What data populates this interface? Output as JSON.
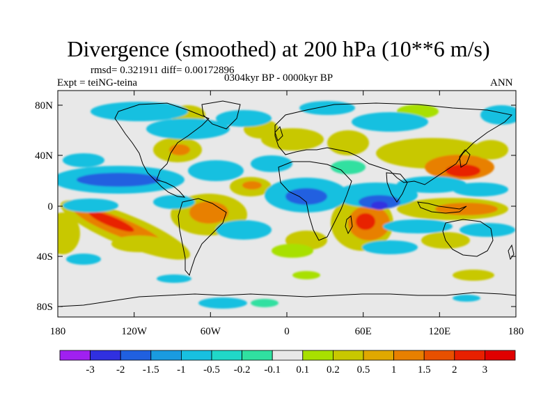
{
  "title": "Divergence (smoothed) at 200 hPa (10**6 m/s)",
  "stats": "rmsd= 0.321911  diff= 0.00172896",
  "experiment": "Expt = teiNG-teina",
  "period": "0304kyr BP - 0000kyr BP",
  "season": "ANN",
  "lat_labels": [
    "80N",
    "40N",
    "0",
    "40S",
    "80S"
  ],
  "lon_labels": [
    "180",
    "120W",
    "60W",
    "0",
    "60E",
    "120E",
    "180"
  ],
  "colorbar": {
    "labels": [
      "-3",
      "-2",
      "-1.5",
      "-1",
      "-0.5",
      "-0.2",
      "-0.1",
      "0.1",
      "0.2",
      "0.5",
      "1",
      "1.5",
      "2",
      "3"
    ],
    "colors": [
      "#a020f0",
      "#3030e0",
      "#2060e0",
      "#1a9be0",
      "#18c0e0",
      "#20d8c8",
      "#30e0a0",
      "#e8e8e8",
      "#a8e000",
      "#c8c800",
      "#e0a800",
      "#e88000",
      "#e85000",
      "#e82000",
      "#e00000"
    ]
  },
  "colors": {
    "ocean_neutral": "#e8e8e8",
    "coast": "#000000"
  }
}
